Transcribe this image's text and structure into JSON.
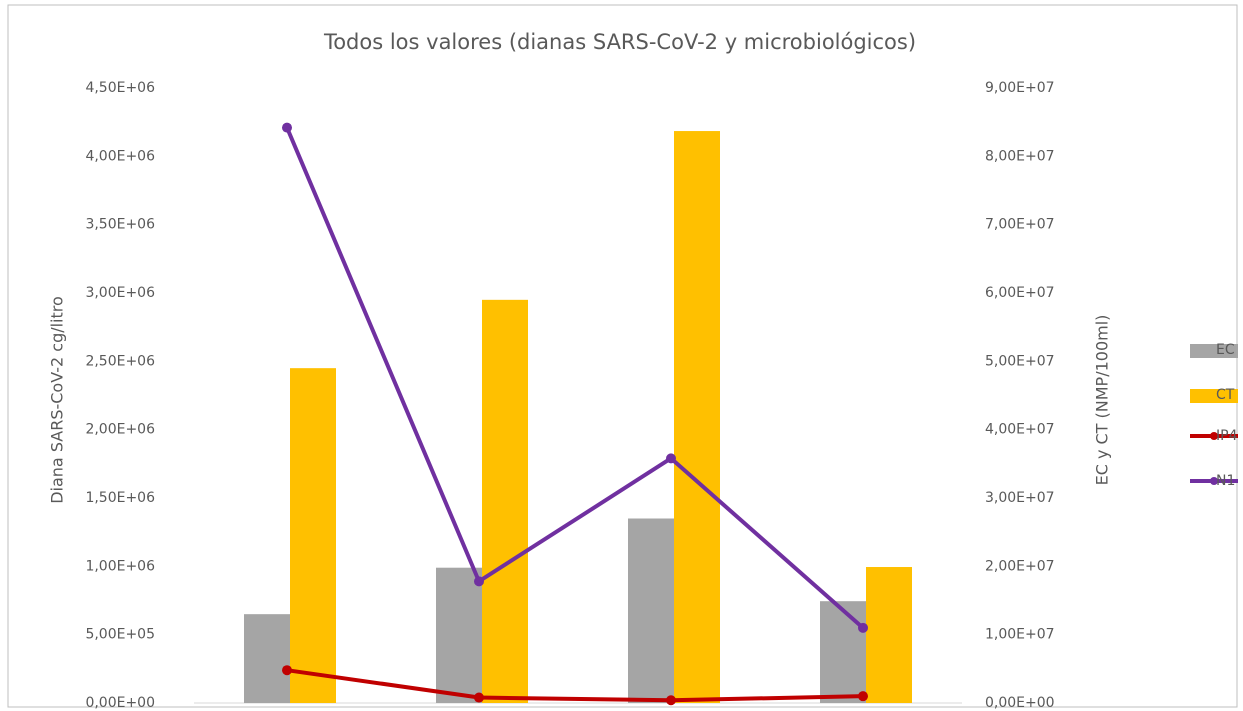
{
  "chart_data": {
    "type": "bar",
    "title": "Todos los valores (dianas SARS-CoV-2  y microbiológicos)",
    "y_label": "Diana SARS-CoV-2 cg/litro",
    "y2_label": "EC y CT (NMP/100ml)",
    "categories": [
      null,
      null,
      null,
      null
    ],
    "series": [
      {
        "name": "EC",
        "type": "bar",
        "axis": "y2",
        "color": "#a5a5a5",
        "values": [
          13000000,
          19800000,
          27000000,
          14900000
        ]
      },
      {
        "name": "CT",
        "type": "bar",
        "axis": "y2",
        "color": "#ffc000",
        "values": [
          49000000,
          59000000,
          83700000,
          19900000
        ]
      },
      {
        "name": "IP4",
        "type": "line",
        "color": "#c00000",
        "values": [
          240000,
          40000,
          20000,
          50000
        ]
      },
      {
        "name": "N1",
        "type": "line",
        "color": "#7030a0",
        "values": [
          4210000,
          890000,
          1790000,
          550000
        ]
      }
    ],
    "ylim": [
      0,
      4500000
    ],
    "yticks": [
      {
        "value": 0,
        "label": "0,00E+00"
      },
      {
        "value": 500000,
        "label": "5,00E+05"
      },
      {
        "value": 1000000,
        "label": "1,00E+06"
      },
      {
        "value": 1500000,
        "label": "1,50E+06"
      },
      {
        "value": 2000000,
        "label": "2,00E+06"
      },
      {
        "value": 2500000,
        "label": "2,50E+06"
      },
      {
        "value": 3000000,
        "label": "3,00E+06"
      },
      {
        "value": 3500000,
        "label": "3,50E+06"
      },
      {
        "value": 4000000,
        "label": "4,00E+06"
      },
      {
        "value": 4500000,
        "label": "4,50E+06"
      }
    ],
    "y2lim": [
      0,
      90000000
    ],
    "y2ticks": [
      {
        "value": 0,
        "label": "0,00E+00"
      },
      {
        "value": 10000000,
        "label": "1,00E+07"
      },
      {
        "value": 20000000,
        "label": "2,00E+07"
      },
      {
        "value": 30000000,
        "label": "3,00E+07"
      },
      {
        "value": 40000000,
        "label": "4,00E+07"
      },
      {
        "value": 50000000,
        "label": "5,00E+07"
      },
      {
        "value": 60000000,
        "label": "6,00E+07"
      },
      {
        "value": 70000000,
        "label": "7,00E+07"
      },
      {
        "value": 80000000,
        "label": "8,00E+07"
      },
      {
        "value": 90000000,
        "label": "9,00E+07"
      }
    ],
    "grid": false,
    "legend": "right"
  }
}
